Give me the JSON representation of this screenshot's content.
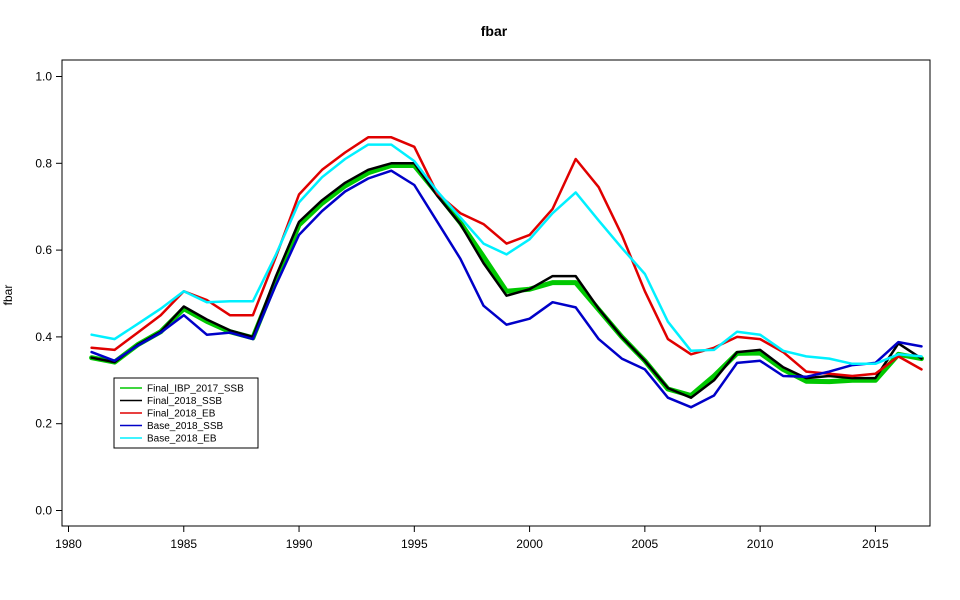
{
  "chart_data": {
    "type": "line",
    "title": "fbar",
    "xlabel": "",
    "ylabel": "fbar",
    "xlim": [
      1980,
      2017
    ],
    "ylim": [
      0,
      1
    ],
    "x_ticks": [
      1980,
      1985,
      1990,
      1995,
      2000,
      2005,
      2010,
      2015
    ],
    "y_ticks": [
      0.0,
      0.2,
      0.4,
      0.6,
      0.8,
      1.0
    ],
    "y_tick_labels": [
      "0.0",
      "0.2",
      "0.4",
      "0.6",
      "0.8",
      "1.0"
    ],
    "legend_position": "bottom-left",
    "grid": false,
    "x": [
      1981,
      1982,
      1983,
      1984,
      1985,
      1986,
      1987,
      1988,
      1989,
      1990,
      1991,
      1992,
      1993,
      1994,
      1995,
      1996,
      1997,
      1998,
      1999,
      2000,
      2001,
      2002,
      2003,
      2004,
      2005,
      2006,
      2007,
      2008,
      2009,
      2010,
      2011,
      2012,
      2013,
      2014,
      2015,
      2016,
      2017
    ],
    "series": [
      {
        "name": "Final_IBP_2017_SSB",
        "color": "#00c800",
        "width": 5,
        "values": [
          0.352,
          0.342,
          0.382,
          0.412,
          0.465,
          0.436,
          0.412,
          0.398,
          0.53,
          0.658,
          0.708,
          0.748,
          0.778,
          0.795,
          0.795,
          0.73,
          0.663,
          0.585,
          0.505,
          0.51,
          0.525,
          0.525,
          0.463,
          0.4,
          0.345,
          0.28,
          0.265,
          0.31,
          0.362,
          0.363,
          0.325,
          0.298,
          0.297,
          0.3,
          0.3,
          0.36,
          0.35
        ]
      },
      {
        "name": "Final_2018_SSB",
        "color": "#000000",
        "width": 2.5,
        "values": [
          0.352,
          0.342,
          0.382,
          0.412,
          0.47,
          0.44,
          0.415,
          0.4,
          0.54,
          0.665,
          0.715,
          0.755,
          0.785,
          0.8,
          0.8,
          0.725,
          0.66,
          0.57,
          0.495,
          0.51,
          0.54,
          0.54,
          0.465,
          0.4,
          0.345,
          0.282,
          0.26,
          0.3,
          0.365,
          0.37,
          0.33,
          0.305,
          0.31,
          0.305,
          0.305,
          0.385,
          0.35
        ]
      },
      {
        "name": "Final_2018_EB",
        "color": "#e00000",
        "width": 2.5,
        "values": [
          0.375,
          0.37,
          0.41,
          0.45,
          0.505,
          0.485,
          0.45,
          0.45,
          0.585,
          0.728,
          0.785,
          0.825,
          0.86,
          0.86,
          0.838,
          0.73,
          0.685,
          0.66,
          0.615,
          0.635,
          0.695,
          0.81,
          0.745,
          0.635,
          0.505,
          0.395,
          0.36,
          0.375,
          0.4,
          0.395,
          0.365,
          0.32,
          0.315,
          0.31,
          0.315,
          0.355,
          0.325
        ]
      },
      {
        "name": "Base_2018_SSB",
        "color": "#0000c8",
        "width": 2.5,
        "values": [
          0.365,
          0.345,
          0.38,
          0.41,
          0.45,
          0.405,
          0.41,
          0.395,
          0.52,
          0.635,
          0.69,
          0.735,
          0.765,
          0.783,
          0.75,
          0.665,
          0.58,
          0.472,
          0.428,
          0.442,
          0.48,
          0.468,
          0.395,
          0.35,
          0.325,
          0.26,
          0.238,
          0.265,
          0.34,
          0.345,
          0.31,
          0.308,
          0.32,
          0.335,
          0.34,
          0.388,
          0.378
        ]
      },
      {
        "name": "Base_2018_EB",
        "color": "#00f0ff",
        "width": 2.5,
        "values": [
          0.405,
          0.395,
          0.43,
          0.465,
          0.505,
          0.48,
          0.482,
          0.482,
          0.59,
          0.71,
          0.768,
          0.81,
          0.843,
          0.843,
          0.805,
          0.735,
          0.675,
          0.615,
          0.59,
          0.625,
          0.685,
          0.733,
          0.668,
          0.605,
          0.545,
          0.435,
          0.368,
          0.37,
          0.412,
          0.405,
          0.368,
          0.355,
          0.35,
          0.338,
          0.338,
          0.36,
          0.355
        ]
      }
    ]
  }
}
